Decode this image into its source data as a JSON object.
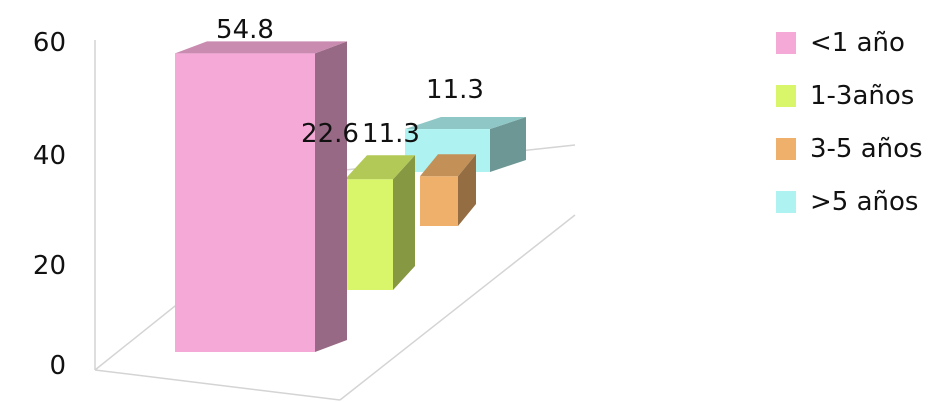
{
  "chart_data": {
    "type": "bar",
    "categories": [
      "<1 año",
      "1-3años",
      "3-5 años",
      ">5 años"
    ],
    "values": [
      54.8,
      22.6,
      11.3,
      11.3
    ],
    "colors": [
      "#f5a9d7",
      "#d9f56a",
      "#eeb06a",
      "#aef3f1"
    ],
    "y_ticks": [
      "0",
      "20",
      "40",
      "60"
    ],
    "ylim": [
      0,
      60
    ],
    "legend_position": "right",
    "grid": false,
    "three_d": true
  }
}
